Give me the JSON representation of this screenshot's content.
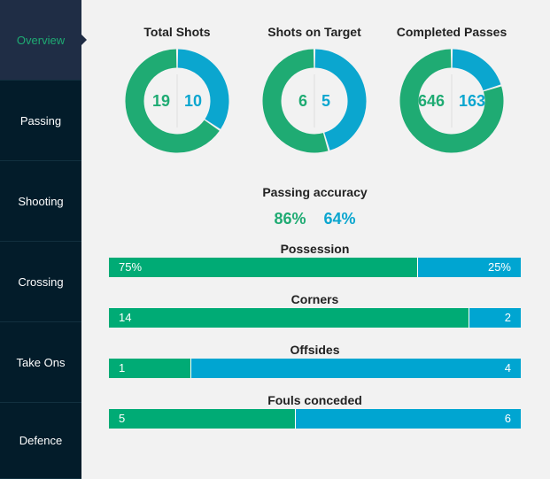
{
  "colors": {
    "home": "#1fab73",
    "away": "#0ba6cf",
    "sidebar": "#031c2a",
    "sidebar_active": "#1f2d45"
  },
  "sidebar": {
    "items": [
      {
        "label": "Overview",
        "active": true
      },
      {
        "label": "Passing"
      },
      {
        "label": "Shooting"
      },
      {
        "label": "Crossing"
      },
      {
        "label": "Take Ons"
      },
      {
        "label": "Defence"
      }
    ]
  },
  "donuts": [
    {
      "title": "Total Shots",
      "home": 19,
      "away": 10
    },
    {
      "title": "Shots on Target",
      "home": 6,
      "away": 5
    },
    {
      "title": "Completed Passes",
      "home": 646,
      "away": 163
    }
  ],
  "passing_accuracy": {
    "title": "Passing accuracy",
    "home": "86%",
    "away": "64%"
  },
  "bars": [
    {
      "title": "Possession",
      "home": 75,
      "away": 25,
      "home_label": "75%",
      "away_label": "25%"
    },
    {
      "title": "Corners",
      "home": 14,
      "away": 2,
      "home_label": "14",
      "away_label": "2"
    },
    {
      "title": "Offsides",
      "home": 1,
      "away": 4,
      "home_label": "1",
      "away_label": "4"
    },
    {
      "title": "Fouls conceded",
      "home": 5,
      "away": 6,
      "home_label": "5",
      "away_label": "6"
    }
  ]
}
